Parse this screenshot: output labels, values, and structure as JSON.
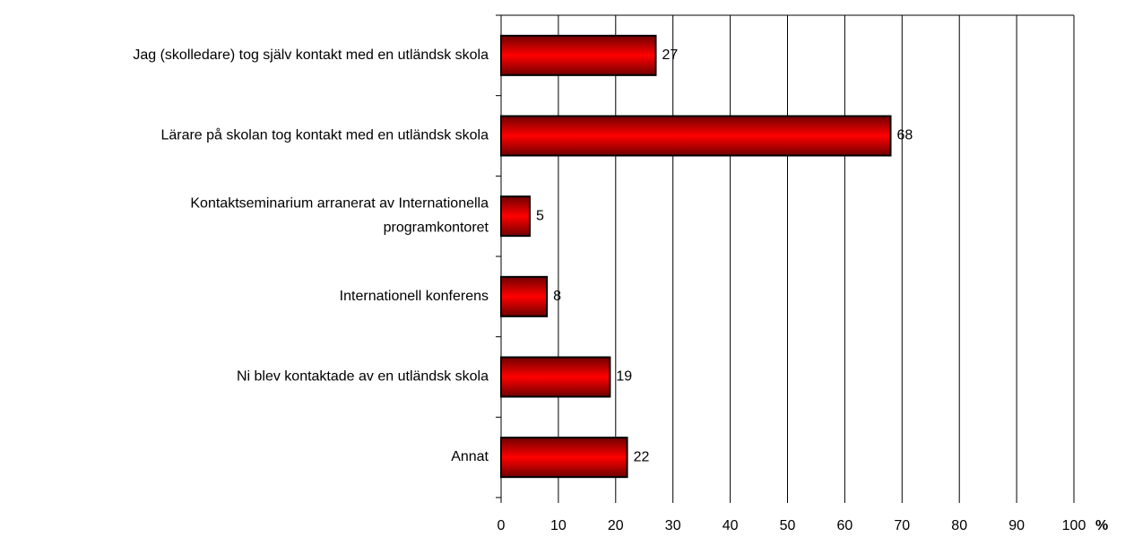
{
  "chart_data": {
    "type": "bar",
    "orientation": "horizontal",
    "categories": [
      "Jag (skolledare) tog själv kontakt med en utländsk skola",
      "Lärare på skolan tog kontakt med en utländsk skola",
      "Kontaktseminarium arranerat av Internationella\nprogramkontoret",
      "Internationell konferens",
      "Ni blev kontaktade av en utländsk skola",
      "Annat"
    ],
    "values": [
      27,
      68,
      5,
      8,
      19,
      22
    ],
    "color": "#ff0000",
    "xlabel": "%",
    "xlim": [
      0,
      100
    ],
    "xticks": [
      0,
      10,
      20,
      30,
      40,
      50,
      60,
      70,
      80,
      90,
      100
    ],
    "grid": true
  }
}
